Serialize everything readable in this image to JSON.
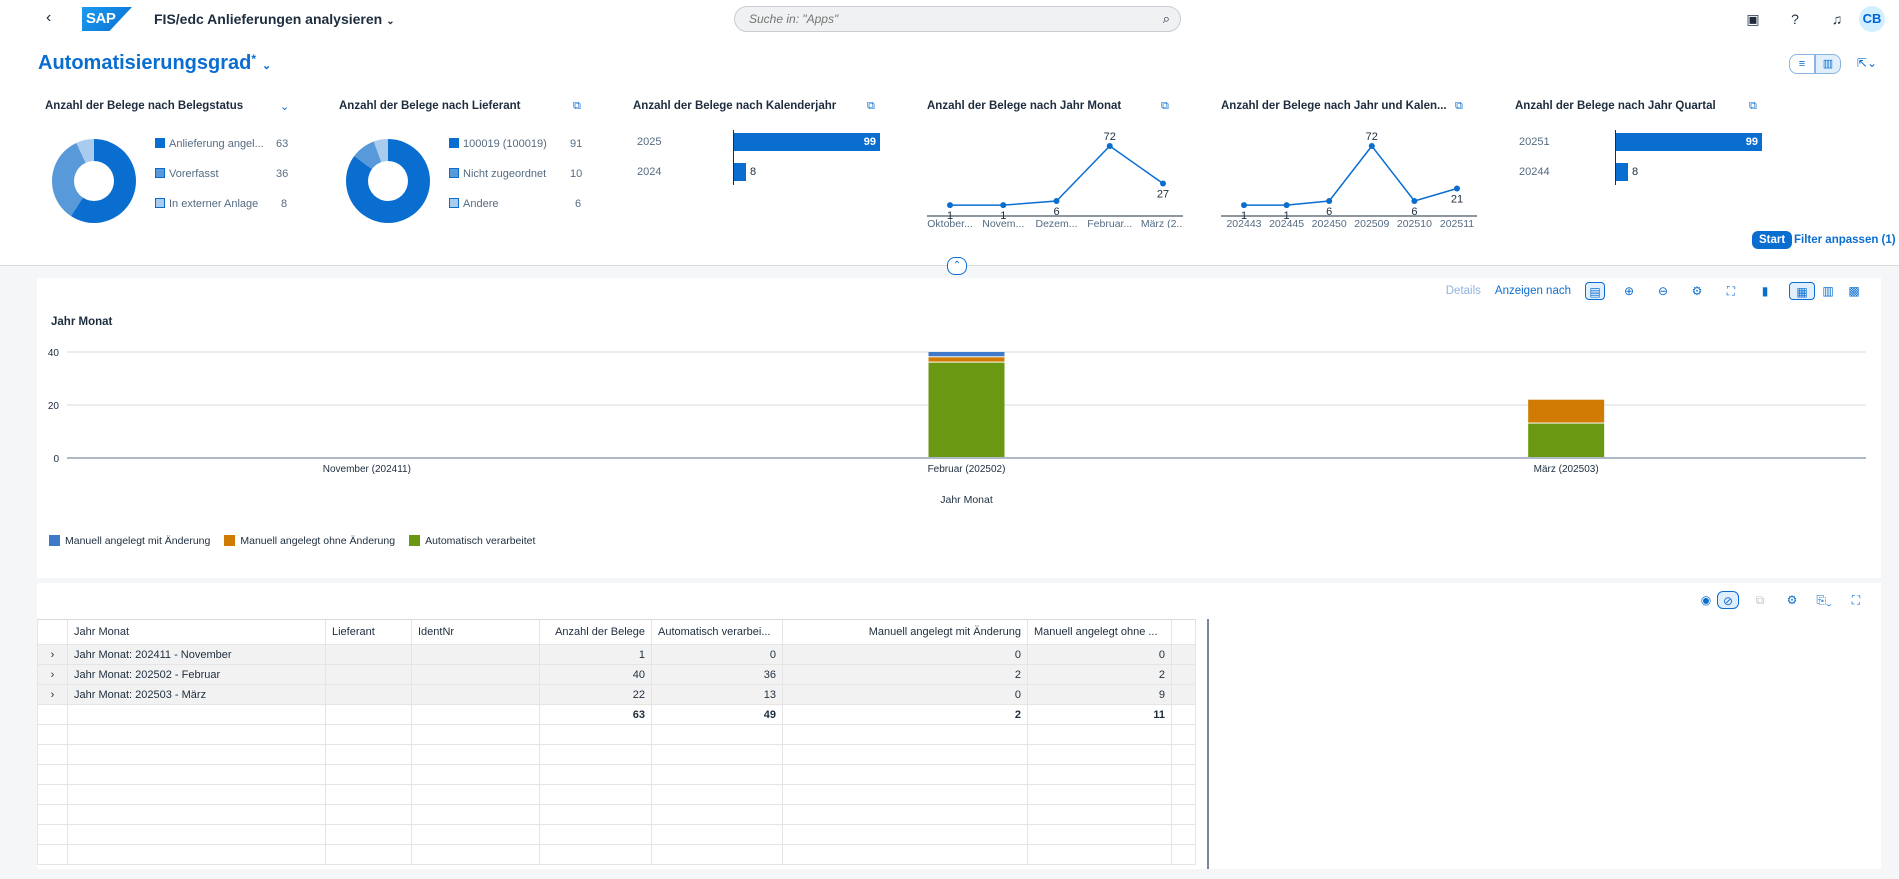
{
  "shell": {
    "app_title": "FIS/edc Anlieferungen analysieren",
    "search_placeholder": "Suche in: \"Apps\"",
    "avatar_initials": "CB"
  },
  "page": {
    "title": "Automatisierungsgrad",
    "dirty_marker": "*"
  },
  "kpi_cards": [
    {
      "title": "Anzahl der Belege nach Belegstatus",
      "type": "donut",
      "legend": [
        {
          "label": "Anlieferung angel...",
          "value": "63",
          "color": "#0a6ed1"
        },
        {
          "label": "Vorerfasst",
          "value": "36",
          "color": "#5899da"
        },
        {
          "label": "In externer Anlage",
          "value": "8",
          "color": "#a9cbee"
        }
      ]
    },
    {
      "title": "Anzahl der Belege nach Lieferant",
      "type": "donut",
      "legend": [
        {
          "label": "100019 (100019)",
          "value": "91",
          "color": "#0a6ed1"
        },
        {
          "label": "Nicht zugeordnet",
          "value": "10",
          "color": "#5899da"
        },
        {
          "label": "Andere",
          "value": "6",
          "color": "#a9cbee"
        }
      ]
    },
    {
      "title": "Anzahl der Belege nach Kalenderjahr",
      "type": "hbar",
      "rows": [
        {
          "label": "2025",
          "value": 99
        },
        {
          "label": "2024",
          "value": 8
        }
      ]
    },
    {
      "title": "Anzahl der Belege nach Jahr Monat",
      "type": "line",
      "categories": [
        "Oktober...",
        "Novem...",
        "Dezem...",
        "Februar...",
        "März (2..."
      ],
      "values": [
        1,
        1,
        6,
        72,
        27
      ]
    },
    {
      "title": "Anzahl der Belege nach Jahr und Kalen...",
      "type": "line",
      "categories": [
        "202443",
        "202445",
        "202450",
        "202509",
        "202510",
        "202511"
      ],
      "values": [
        1,
        1,
        6,
        72,
        6,
        21
      ]
    },
    {
      "title": "Anzahl der Belege nach Jahr Quartal",
      "type": "hbar",
      "rows": [
        {
          "label": "20251",
          "value": 99
        },
        {
          "label": "20244",
          "value": 8
        }
      ]
    }
  ],
  "filter_bar": {
    "start_label": "Start",
    "adjust_label": "Filter anpassen (1)"
  },
  "chart_toolbar": {
    "details_label": "Details",
    "display_by_label": "Anzeigen nach"
  },
  "chart_data": {
    "type": "bar",
    "stacked": true,
    "title": "Jahr Monat",
    "xlabel": "Jahr Monat",
    "ylabel": "",
    "ylim": [
      0,
      40
    ],
    "yticks": [
      0,
      20,
      40
    ],
    "categories": [
      "November (202411)",
      "Februar (202502)",
      "März (202503)"
    ],
    "series": [
      {
        "name": "Automatisch verarbeitet",
        "color": "#6b9812",
        "values": [
          0,
          36,
          13
        ]
      },
      {
        "name": "Manuell angelegt ohne Änderung",
        "color": "#d07c04",
        "values": [
          0,
          2,
          9
        ]
      },
      {
        "name": "Manuell angelegt mit Änderung",
        "color": "#3e7ac9",
        "values": [
          0,
          2,
          0
        ]
      }
    ],
    "legend_order": [
      "Manuell angelegt mit Änderung",
      "Manuell angelegt ohne Änderung",
      "Automatisch verarbeitet"
    ],
    "legend_position": "bottom-left",
    "grid": true
  },
  "table": {
    "columns": [
      "Jahr Monat",
      "Lieferant",
      "IdentNr",
      "Anzahl der Belege",
      "Automatisch verarbei...",
      "Manuell angelegt mit Änderung",
      "Manuell angelegt ohne ..."
    ],
    "rows": [
      {
        "expander": "›",
        "label": "Jahr Monat: 202411 - November",
        "anzahl": "1",
        "auto": "0",
        "mit": "0",
        "ohne": "0"
      },
      {
        "expander": "›",
        "label": "Jahr Monat: 202502 - Februar",
        "anzahl": "40",
        "auto": "36",
        "mit": "2",
        "ohne": "2"
      },
      {
        "expander": "›",
        "label": "Jahr Monat: 202503 - März",
        "anzahl": "22",
        "auto": "13",
        "mit": "0",
        "ohne": "9"
      }
    ],
    "totals": {
      "anzahl": "63",
      "auto": "49",
      "mit": "2",
      "ohne": "11"
    }
  }
}
